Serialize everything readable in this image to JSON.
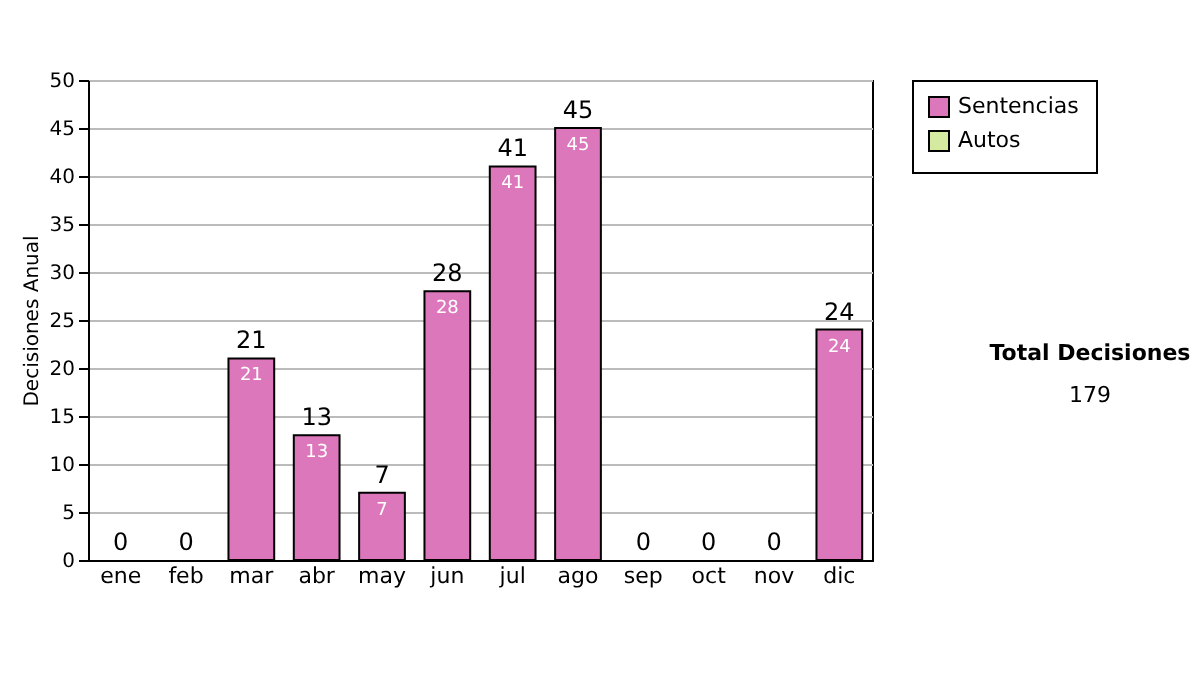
{
  "chart_data": {
    "type": "bar",
    "stacked": true,
    "ylabel": "Decisiones Anual",
    "categories": [
      "ene",
      "feb",
      "mar",
      "abr",
      "may",
      "jun",
      "jul",
      "ago",
      "sep",
      "oct",
      "nov",
      "dic"
    ],
    "series": [
      {
        "name": "Sentencias",
        "color": "#dd77bb",
        "values": [
          0,
          0,
          21,
          13,
          7,
          28,
          41,
          45,
          0,
          0,
          0,
          24
        ],
        "value_labels": [
          null,
          null,
          "21",
          "13",
          "7",
          "28",
          "41",
          "45",
          null,
          null,
          null,
          "24"
        ]
      },
      {
        "name": "Autos",
        "color": "#d4eaa0",
        "values": [
          0,
          0,
          0,
          0,
          0,
          0,
          0,
          0,
          0,
          0,
          0,
          0
        ]
      }
    ],
    "totals": [
      "0",
      "0",
      "21",
      "13",
      "7",
      "28",
      "41",
      "45",
      "0",
      "0",
      "0",
      "24"
    ],
    "ylim": [
      0,
      50
    ],
    "yticks": [
      0,
      5,
      10,
      15,
      20,
      25,
      30,
      35,
      40,
      45,
      50
    ],
    "grid": "y",
    "legend": "right",
    "annotations": [
      "Total Decisiones",
      "179"
    ]
  }
}
